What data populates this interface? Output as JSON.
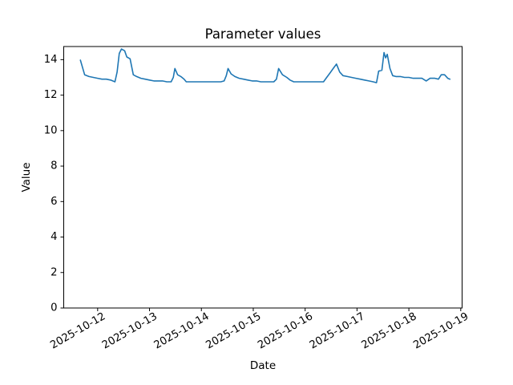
{
  "figure": {
    "background": "#ffffff",
    "frame_color": "#000000",
    "text_color": "#000000"
  },
  "chart_data": {
    "type": "line",
    "title": "Parameter values",
    "xlabel": "Date",
    "ylabel": "Value",
    "grid": false,
    "legend": null,
    "ylim": [
      0,
      14.74
    ],
    "y_ticks": [
      0,
      2,
      4,
      6,
      8,
      10,
      12,
      14
    ],
    "x_tick_labels": [
      "2025-10-12",
      "2025-10-13",
      "2025-10-14",
      "2025-10-15",
      "2025-10-16",
      "2025-10-17",
      "2025-10-18",
      "2025-10-19"
    ],
    "x_tick_label_rotation_deg": 30,
    "xlim_days_from_first_tick": [
      -0.654,
      7.026
    ],
    "series": [
      {
        "name": "parameter-values",
        "color": "#1f77b4",
        "points": [
          [
            "2025-10-11 16:00",
            13.97
          ],
          [
            "2025-10-11 18:00",
            13.15
          ],
          [
            "2025-10-11 20:00",
            13.05
          ],
          [
            "2025-10-11 22:00",
            13.0
          ],
          [
            "2025-10-12 00:00",
            12.95
          ],
          [
            "2025-10-12 02:00",
            12.9
          ],
          [
            "2025-10-12 04:00",
            12.9
          ],
          [
            "2025-10-12 06:00",
            12.85
          ],
          [
            "2025-10-12 08:00",
            12.75
          ],
          [
            "2025-10-12 09:00",
            13.3
          ],
          [
            "2025-10-12 10:00",
            14.35
          ],
          [
            "2025-10-12 11:00",
            14.6
          ],
          [
            "2025-10-12 12:30",
            14.5
          ],
          [
            "2025-10-12 13:30",
            14.15
          ],
          [
            "2025-10-12 15:00",
            14.05
          ],
          [
            "2025-10-12 16:30",
            13.15
          ],
          [
            "2025-10-12 18:00",
            13.05
          ],
          [
            "2025-10-12 20:00",
            12.95
          ],
          [
            "2025-10-12 22:00",
            12.9
          ],
          [
            "2025-10-13 00:00",
            12.85
          ],
          [
            "2025-10-13 02:00",
            12.8
          ],
          [
            "2025-10-13 04:00",
            12.8
          ],
          [
            "2025-10-13 06:00",
            12.8
          ],
          [
            "2025-10-13 08:00",
            12.75
          ],
          [
            "2025-10-13 10:00",
            12.75
          ],
          [
            "2025-10-13 11:00",
            13.0
          ],
          [
            "2025-10-13 11:45",
            13.5
          ],
          [
            "2025-10-13 13:00",
            13.15
          ],
          [
            "2025-10-13 14:30",
            13.05
          ],
          [
            "2025-10-13 16:00",
            12.9
          ],
          [
            "2025-10-13 17:00",
            12.75
          ],
          [
            "2025-10-13 19:00",
            12.75
          ],
          [
            "2025-10-13 21:00",
            12.75
          ],
          [
            "2025-10-13 23:00",
            12.75
          ],
          [
            "2025-10-14 01:00",
            12.75
          ],
          [
            "2025-10-14 03:00",
            12.75
          ],
          [
            "2025-10-14 05:00",
            12.75
          ],
          [
            "2025-10-14 07:00",
            12.75
          ],
          [
            "2025-10-14 09:00",
            12.75
          ],
          [
            "2025-10-14 10:30",
            12.8
          ],
          [
            "2025-10-14 11:30",
            13.1
          ],
          [
            "2025-10-14 12:20",
            13.5
          ],
          [
            "2025-10-14 13:45",
            13.2
          ],
          [
            "2025-10-14 15:30",
            13.05
          ],
          [
            "2025-10-14 17:30",
            12.95
          ],
          [
            "2025-10-14 19:30",
            12.9
          ],
          [
            "2025-10-14 21:30",
            12.85
          ],
          [
            "2025-10-14 23:30",
            12.8
          ],
          [
            "2025-10-15 01:30",
            12.8
          ],
          [
            "2025-10-15 03:30",
            12.75
          ],
          [
            "2025-10-15 05:30",
            12.75
          ],
          [
            "2025-10-15 07:30",
            12.75
          ],
          [
            "2025-10-15 09:30",
            12.75
          ],
          [
            "2025-10-15 10:45",
            12.9
          ],
          [
            "2025-10-15 11:45",
            13.5
          ],
          [
            "2025-10-15 13:30",
            13.15
          ],
          [
            "2025-10-15 15:30",
            13.0
          ],
          [
            "2025-10-15 17:00",
            12.85
          ],
          [
            "2025-10-15 18:45",
            12.75
          ],
          [
            "2025-10-15 20:30",
            12.75
          ],
          [
            "2025-10-15 22:30",
            12.75
          ],
          [
            "2025-10-16 00:30",
            12.75
          ],
          [
            "2025-10-16 02:30",
            12.75
          ],
          [
            "2025-10-16 04:30",
            12.75
          ],
          [
            "2025-10-16 06:30",
            12.75
          ],
          [
            "2025-10-16 08:30",
            12.75
          ],
          [
            "2025-10-16 10:00",
            13.0
          ],
          [
            "2025-10-16 11:30",
            13.25
          ],
          [
            "2025-10-16 13:00",
            13.5
          ],
          [
            "2025-10-16 14:30",
            13.75
          ],
          [
            "2025-10-16 16:00",
            13.3
          ],
          [
            "2025-10-16 17:30",
            13.1
          ],
          [
            "2025-10-16 19:30",
            13.05
          ],
          [
            "2025-10-16 21:30",
            13.0
          ],
          [
            "2025-10-16 23:30",
            12.95
          ],
          [
            "2025-10-17 01:30",
            12.9
          ],
          [
            "2025-10-17 03:30",
            12.85
          ],
          [
            "2025-10-17 05:30",
            12.8
          ],
          [
            "2025-10-17 07:30",
            12.75
          ],
          [
            "2025-10-17 09:00",
            12.7
          ],
          [
            "2025-10-17 10:00",
            13.35
          ],
          [
            "2025-10-17 11:30",
            13.4
          ],
          [
            "2025-10-17 12:30",
            14.4
          ],
          [
            "2025-10-17 13:15",
            14.1
          ],
          [
            "2025-10-17 14:00",
            14.3
          ],
          [
            "2025-10-17 15:15",
            13.5
          ],
          [
            "2025-10-17 16:30",
            13.1
          ],
          [
            "2025-10-17 18:00",
            13.05
          ],
          [
            "2025-10-17 20:00",
            13.05
          ],
          [
            "2025-10-17 22:00",
            13.0
          ],
          [
            "2025-10-18 00:00",
            13.0
          ],
          [
            "2025-10-18 02:00",
            12.95
          ],
          [
            "2025-10-18 04:00",
            12.95
          ],
          [
            "2025-10-18 06:00",
            12.95
          ],
          [
            "2025-10-18 08:00",
            12.8
          ],
          [
            "2025-10-18 09:50",
            12.95
          ],
          [
            "2025-10-18 12:00",
            12.95
          ],
          [
            "2025-10-18 13:40",
            12.9
          ],
          [
            "2025-10-18 15:00",
            13.15
          ],
          [
            "2025-10-18 16:30",
            13.15
          ],
          [
            "2025-10-18 18:00",
            12.95
          ],
          [
            "2025-10-18 19:00",
            12.9
          ]
        ]
      }
    ]
  }
}
